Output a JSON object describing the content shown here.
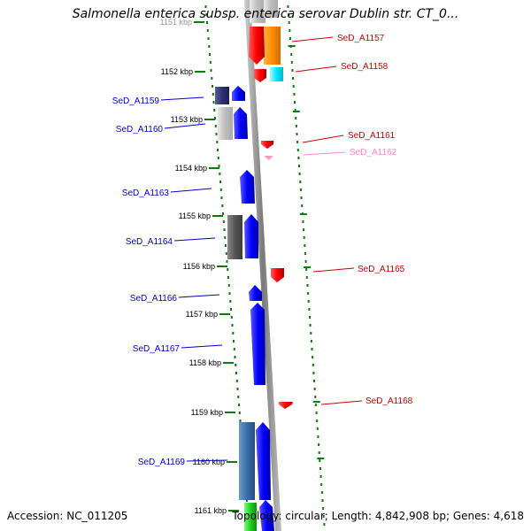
{
  "title": "Salmonella enterica subsp. enterica serovar Dublin str. CT_0...",
  "footer": {
    "accession": "Accession: NC_011205",
    "info": "Topology: circular; Length: 4,842,908 bp; Genes: 4,618"
  },
  "ruler": {
    "ticks": [
      {
        "label": "1151 kbp"
      },
      {
        "label": "1152 kbp"
      },
      {
        "label": "1153 kbp"
      },
      {
        "label": "1154 kbp"
      },
      {
        "label": "1155 kbp"
      },
      {
        "label": "1156 kbp"
      },
      {
        "label": "1157 kbp"
      },
      {
        "label": "1158 kbp"
      },
      {
        "label": "1159 kbp"
      },
      {
        "label": "1160 kbp"
      },
      {
        "label": "1161 kbp"
      }
    ]
  },
  "genes_left": [
    {
      "label": "SeD_A1159"
    },
    {
      "label": "SeD_A1160"
    },
    {
      "label": "SeD_A1163"
    },
    {
      "label": "SeD_A1164"
    },
    {
      "label": "SeD_A1166"
    },
    {
      "label": "SeD_A1167"
    },
    {
      "label": "SeD_A1169"
    }
  ],
  "genes_right": [
    {
      "label": "SeD_A1157"
    },
    {
      "label": "SeD_A1158"
    },
    {
      "label": "SeD_A1161"
    },
    {
      "label": "SeD_A1162"
    },
    {
      "label": "SeD_A1165"
    },
    {
      "label": "SeD_A1168"
    }
  ],
  "colors": {
    "forward": "#0000ff",
    "reverse": "#ff0000",
    "pseudogene": "#ff99cc",
    "backbone": "#888888",
    "dots": "#0a7d0a",
    "label_left": "#0000cc",
    "label_right": "#cc0000",
    "label_pseudo": "#ff88cc"
  }
}
